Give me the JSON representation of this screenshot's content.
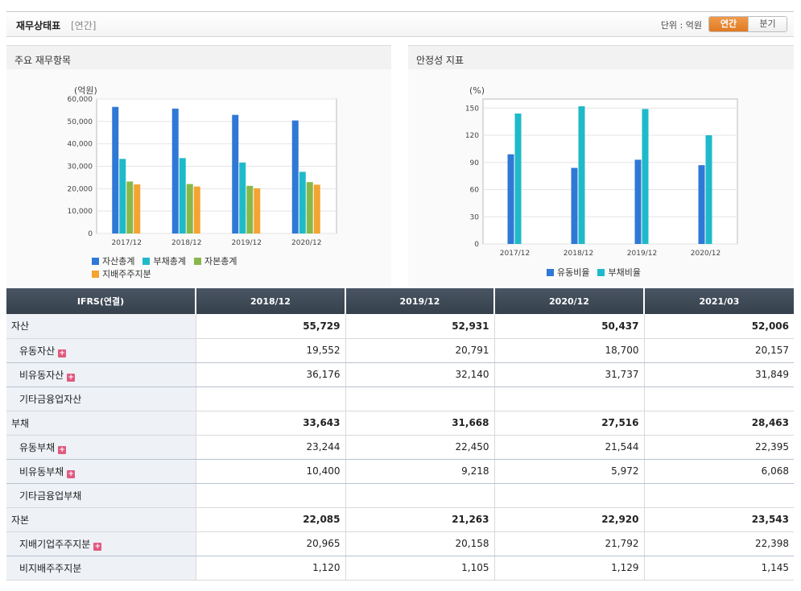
{
  "header": {
    "title": "재무상태표",
    "period": "[연간]",
    "unit": "단위 : 억원",
    "toggle": {
      "annual": "연간",
      "quarter": "분기"
    }
  },
  "panel_left": {
    "title": "주요 재무항목",
    "unit_label": "(억원)"
  },
  "panel_right": {
    "title": "안정성 지표",
    "unit_label": "(%)"
  },
  "colors": {
    "s1": "#2f78d6",
    "s2": "#1fbac9",
    "s3": "#88b84a",
    "s4": "#f3a431"
  },
  "chart_data": [
    {
      "type": "bar",
      "title": "주요 재무항목",
      "ylabel": "(억원)",
      "ylim": [
        0,
        60000
      ],
      "yticks": [
        0,
        10000,
        20000,
        30000,
        40000,
        50000,
        60000
      ],
      "ytick_labels": [
        "0",
        "10,000",
        "20,000",
        "30,000",
        "40,000",
        "50,000",
        "60,000"
      ],
      "categories": [
        "2017/12",
        "2018/12",
        "2019/12",
        "2020/12"
      ],
      "legend_position": "bottom-left",
      "series": [
        {
          "name": "자산총계",
          "color": "#2f78d6",
          "values": [
            56500,
            55729,
            52931,
            50437
          ]
        },
        {
          "name": "부채총계",
          "color": "#1fbac9",
          "values": [
            33300,
            33643,
            31668,
            27516
          ]
        },
        {
          "name": "자본총계",
          "color": "#88b84a",
          "values": [
            23200,
            22085,
            21263,
            22920
          ]
        },
        {
          "name": "지배주주지분",
          "color": "#f3a431",
          "values": [
            21900,
            20965,
            20158,
            21792
          ]
        }
      ]
    },
    {
      "type": "bar",
      "title": "안정성 지표",
      "ylabel": "(%)",
      "ylim": [
        0,
        160
      ],
      "yticks": [
        0,
        30,
        60,
        90,
        120,
        150
      ],
      "ytick_labels": [
        "0",
        "30",
        "60",
        "90",
        "120",
        "150"
      ],
      "categories": [
        "2017/12",
        "2018/12",
        "2019/12",
        "2020/12"
      ],
      "legend_position": "bottom-center",
      "series": [
        {
          "name": "유동비율",
          "color": "#2f78d6",
          "values": [
            99,
            84,
            93,
            87
          ]
        },
        {
          "name": "부채비율",
          "color": "#1fbac9",
          "values": [
            144,
            152,
            149,
            120
          ]
        }
      ]
    }
  ],
  "table": {
    "headers": [
      "IFRS(연결)",
      "2018/12",
      "2019/12",
      "2020/12",
      "2021/03"
    ],
    "rows": [
      {
        "label": "자산",
        "type": "grp",
        "plus": false,
        "values": [
          "55,729",
          "52,931",
          "50,437",
          "52,006"
        ]
      },
      {
        "label": "유동자산",
        "type": "sub",
        "plus": true,
        "values": [
          "19,552",
          "20,791",
          "18,700",
          "20,157"
        ]
      },
      {
        "label": "비유동자산",
        "type": "sub",
        "plus": true,
        "values": [
          "36,176",
          "32,140",
          "31,737",
          "31,849"
        ]
      },
      {
        "label": "기타금융업자산",
        "type": "sub",
        "plus": false,
        "values": [
          "",
          "",
          "",
          ""
        ]
      },
      {
        "label": "부채",
        "type": "grp",
        "plus": false,
        "values": [
          "33,643",
          "31,668",
          "27,516",
          "28,463"
        ]
      },
      {
        "label": "유동부채",
        "type": "sub",
        "plus": true,
        "values": [
          "23,244",
          "22,450",
          "21,544",
          "22,395"
        ]
      },
      {
        "label": "비유동부채",
        "type": "sub",
        "plus": true,
        "values": [
          "10,400",
          "9,218",
          "5,972",
          "6,068"
        ]
      },
      {
        "label": "기타금융업부채",
        "type": "sub",
        "plus": false,
        "values": [
          "",
          "",
          "",
          ""
        ]
      },
      {
        "label": "자본",
        "type": "grp",
        "plus": false,
        "values": [
          "22,085",
          "21,263",
          "22,920",
          "23,543"
        ]
      },
      {
        "label": "지배기업주주지분",
        "type": "sub",
        "plus": true,
        "values": [
          "20,965",
          "20,158",
          "21,792",
          "22,398"
        ]
      },
      {
        "label": "비지배주주지분",
        "type": "sub",
        "plus": false,
        "values": [
          "1,120",
          "1,105",
          "1,129",
          "1,145"
        ]
      }
    ],
    "plus_icon": "+"
  }
}
